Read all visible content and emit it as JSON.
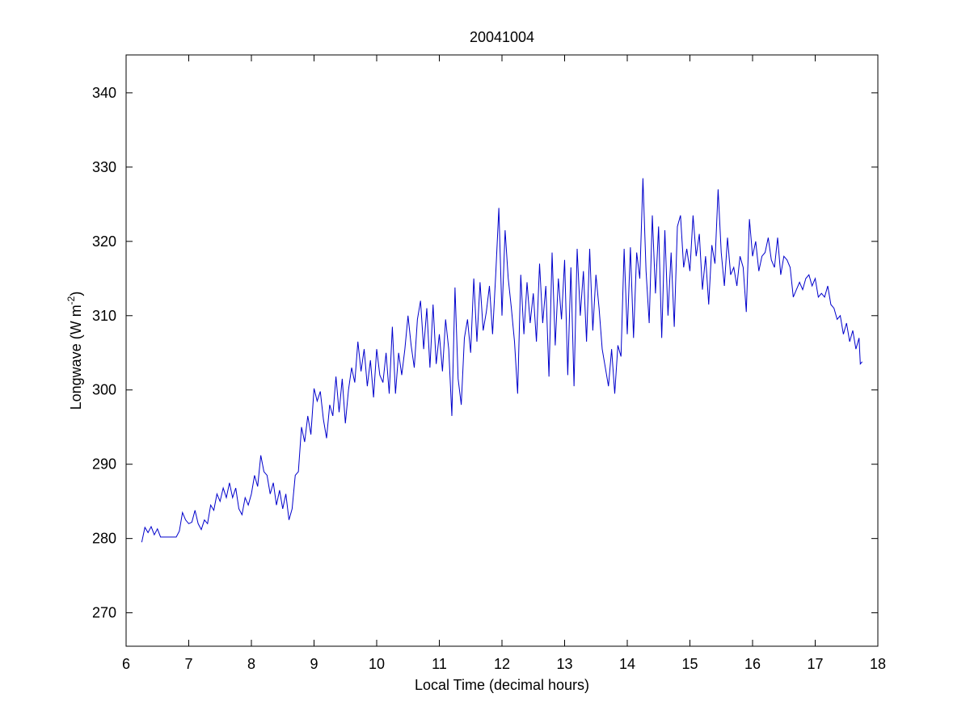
{
  "chart_data": {
    "type": "line",
    "title": "20041004",
    "xlabel": "Local Time (decimal hours)",
    "ylabel": {
      "text": "Longwave (W m",
      "superscript": "-2",
      "suffix": ")"
    },
    "xlim": [
      6,
      18
    ],
    "xticks": [
      6,
      7,
      8,
      9,
      10,
      11,
      12,
      13,
      14,
      15,
      16,
      17,
      18
    ],
    "ylim": [
      265.5,
      345.1
    ],
    "yticks": [
      270,
      280,
      290,
      300,
      310,
      320,
      330,
      340
    ],
    "grid": false,
    "x": [
      6.25,
      6.3,
      6.35,
      6.4,
      6.45,
      6.5,
      6.55,
      6.6,
      6.65,
      6.7,
      6.75,
      6.8,
      6.85,
      6.9,
      6.95,
      7,
      7.05,
      7.1,
      7.15,
      7.2,
      7.25,
      7.3,
      7.35,
      7.4,
      7.45,
      7.5,
      7.55,
      7.6,
      7.65,
      7.7,
      7.75,
      7.8,
      7.85,
      7.9,
      7.95,
      8,
      8.05,
      8.1,
      8.15,
      8.2,
      8.25,
      8.3,
      8.35,
      8.4,
      8.45,
      8.5,
      8.55,
      8.6,
      8.65,
      8.7,
      8.75,
      8.8,
      8.85,
      8.9,
      8.95,
      9,
      9.05,
      9.1,
      9.15,
      9.2,
      9.25,
      9.3,
      9.35,
      9.4,
      9.45,
      9.5,
      9.55,
      9.6,
      9.65,
      9.7,
      9.75,
      9.8,
      9.85,
      9.9,
      9.95,
      10,
      10.05,
      10.1,
      10.15,
      10.2,
      10.25,
      10.3,
      10.35,
      10.4,
      10.45,
      10.5,
      10.55,
      10.6,
      10.65,
      10.7,
      10.75,
      10.8,
      10.85,
      10.9,
      10.95,
      11,
      11.05,
      11.1,
      11.15,
      11.2,
      11.25,
      11.3,
      11.35,
      11.4,
      11.45,
      11.5,
      11.55,
      11.6,
      11.65,
      11.7,
      11.75,
      11.8,
      11.85,
      11.9,
      11.95,
      12,
      12.05,
      12.1,
      12.15,
      12.2,
      12.25,
      12.3,
      12.35,
      12.4,
      12.45,
      12.5,
      12.55,
      12.6,
      12.65,
      12.7,
      12.75,
      12.8,
      12.85,
      12.9,
      12.95,
      13,
      13.05,
      13.1,
      13.15,
      13.2,
      13.25,
      13.3,
      13.35,
      13.4,
      13.45,
      13.5,
      13.55,
      13.6,
      13.65,
      13.7,
      13.75,
      13.8,
      13.85,
      13.9,
      13.95,
      14,
      14.05,
      14.1,
      14.15,
      14.2,
      14.25,
      14.3,
      14.35,
      14.4,
      14.45,
      14.5,
      14.55,
      14.6,
      14.65,
      14.7,
      14.75,
      14.8,
      14.85,
      14.9,
      14.95,
      15,
      15.05,
      15.1,
      15.15,
      15.2,
      15.25,
      15.3,
      15.35,
      15.4,
      15.45,
      15.5,
      15.55,
      15.6,
      15.65,
      15.7,
      15.75,
      15.8,
      15.85,
      15.9,
      15.95,
      16,
      16.05,
      16.1,
      16.15,
      16.2,
      16.25,
      16.3,
      16.35,
      16.4,
      16.45,
      16.5,
      16.55,
      16.6,
      16.65,
      16.7,
      16.75,
      16.8,
      16.85,
      16.9,
      16.95,
      17,
      17.05,
      17.1,
      17.15,
      17.2,
      17.25,
      17.3,
      17.35,
      17.4,
      17.45,
      17.5,
      17.55,
      17.6,
      17.65,
      17.7,
      17.72,
      17.75
    ],
    "series": [
      {
        "color": "#0000cc",
        "values": [
          279.5,
          281.5,
          280.8,
          281.6,
          280.5,
          281.3,
          280.2,
          280.2,
          280.2,
          280.2,
          280.2,
          280.2,
          281,
          283.5,
          282.5,
          282,
          282.2,
          283.8,
          282,
          281.2,
          282.5,
          282,
          284.5,
          283.8,
          286,
          285,
          286.8,
          285.5,
          287.5,
          285.5,
          286.8,
          284,
          283.2,
          285.5,
          284.5,
          286,
          288.5,
          287,
          291.2,
          289,
          288.5,
          286,
          287.5,
          284.5,
          286.5,
          284,
          286,
          282.5,
          284,
          288.5,
          289,
          295,
          293,
          296.5,
          294,
          300.2,
          298.5,
          299.8,
          296,
          293.5,
          298,
          296.5,
          301.8,
          297,
          301.5,
          295.5,
          300,
          303,
          301,
          306.5,
          302.5,
          305.5,
          300.5,
          304,
          299,
          305.5,
          302,
          301,
          305,
          299.5,
          308.5,
          299.5,
          305,
          302,
          305.5,
          310,
          306,
          303,
          309.5,
          312,
          305.5,
          311,
          303,
          311.5,
          303.5,
          307.5,
          302.5,
          309.5,
          305.5,
          296.5,
          313.8,
          301.5,
          298,
          307,
          309.5,
          305,
          315,
          306.5,
          314.5,
          308,
          310.5,
          314,
          307.5,
          315.5,
          324.5,
          310,
          321.5,
          315,
          311,
          306.5,
          299.5,
          315.5,
          307.5,
          314.5,
          309,
          313,
          306.5,
          317,
          309,
          314,
          301.8,
          318.5,
          306,
          315,
          309.5,
          317.5,
          302,
          316.5,
          300.5,
          319,
          310,
          316,
          306.5,
          319,
          308,
          315.5,
          311,
          305.5,
          303,
          300.5,
          305.5,
          299.5,
          306,
          304.5,
          319,
          307.5,
          319.2,
          307,
          318.5,
          315,
          328.5,
          316,
          309,
          323.5,
          313,
          322,
          307,
          321.5,
          310,
          318.5,
          308.5,
          322,
          323.5,
          316.5,
          319,
          316,
          323.5,
          318,
          321,
          313.5,
          318,
          311.5,
          319.5,
          317,
          327,
          318.5,
          314,
          320.5,
          315.5,
          316.5,
          314,
          318,
          316.5,
          310.5,
          323,
          318,
          320,
          316,
          318,
          318.5,
          320.5,
          317.5,
          316.5,
          320.5,
          315.5,
          318,
          317.5,
          316.5,
          312.5,
          313.5,
          314.5,
          313.5,
          315,
          315.5,
          314,
          315,
          312.5,
          313,
          312.5,
          314,
          311.5,
          311,
          309.5,
          310,
          307.5,
          309,
          306.5,
          308,
          305.5,
          307,
          303.5,
          303.8
        ]
      }
    ]
  }
}
